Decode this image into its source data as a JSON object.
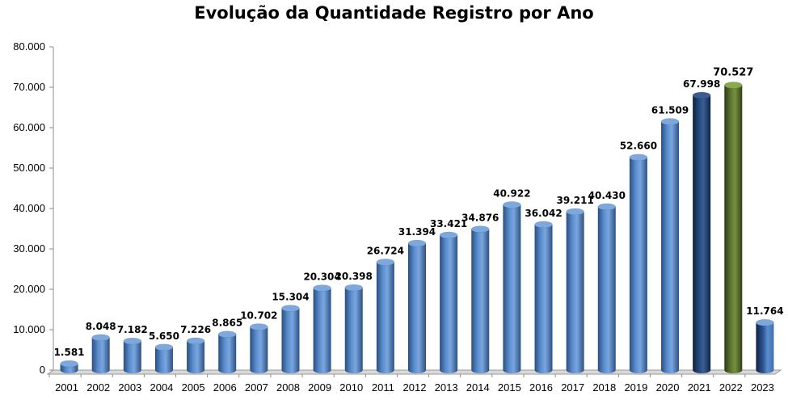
{
  "chart_data": {
    "type": "bar",
    "title": "Evolução da Quantidade Registro por Ano",
    "xlabel": "",
    "ylabel": "",
    "ylim": [
      0,
      80000
    ],
    "yticks": [
      0,
      10000,
      20000,
      30000,
      40000,
      50000,
      60000,
      70000,
      80000
    ],
    "ytick_labels": [
      "0",
      "10.000",
      "20.000",
      "30.000",
      "40.000",
      "50.000",
      "60.000",
      "70.000",
      "80.000"
    ],
    "grid": false,
    "bar_style": "3d-cylinder",
    "categories": [
      "2001",
      "2002",
      "2003",
      "2004",
      "2005",
      "2006",
      "2007",
      "2008",
      "2009",
      "2010",
      "2011",
      "2012",
      "2013",
      "2014",
      "2015",
      "2016",
      "2017",
      "2018",
      "2019",
      "2020",
      "2021",
      "2022",
      "2023"
    ],
    "values": [
      1581,
      8048,
      7182,
      5650,
      7226,
      8865,
      10702,
      15304,
      20304,
      20398,
      26724,
      31394,
      33421,
      34876,
      40922,
      36042,
      39211,
      40430,
      52660,
      61509,
      67998,
      70527,
      11764
    ],
    "value_labels": [
      "1.581",
      "8.048",
      "7.182",
      "5.650",
      "7.226",
      "8.865",
      "10.702",
      "15.304",
      "20.304",
      "20.398",
      "26.724",
      "31.394",
      "33.421",
      "34.876",
      "40.922",
      "36.042",
      "39.211",
      "40.430",
      "52.660",
      "61.509",
      "67.998",
      "70.527",
      "11.764"
    ],
    "colors": {
      "default": "#4f81bd",
      "2021": "#1f3864",
      "2022": "#4f6228",
      "2023": "#2f5597"
    }
  }
}
